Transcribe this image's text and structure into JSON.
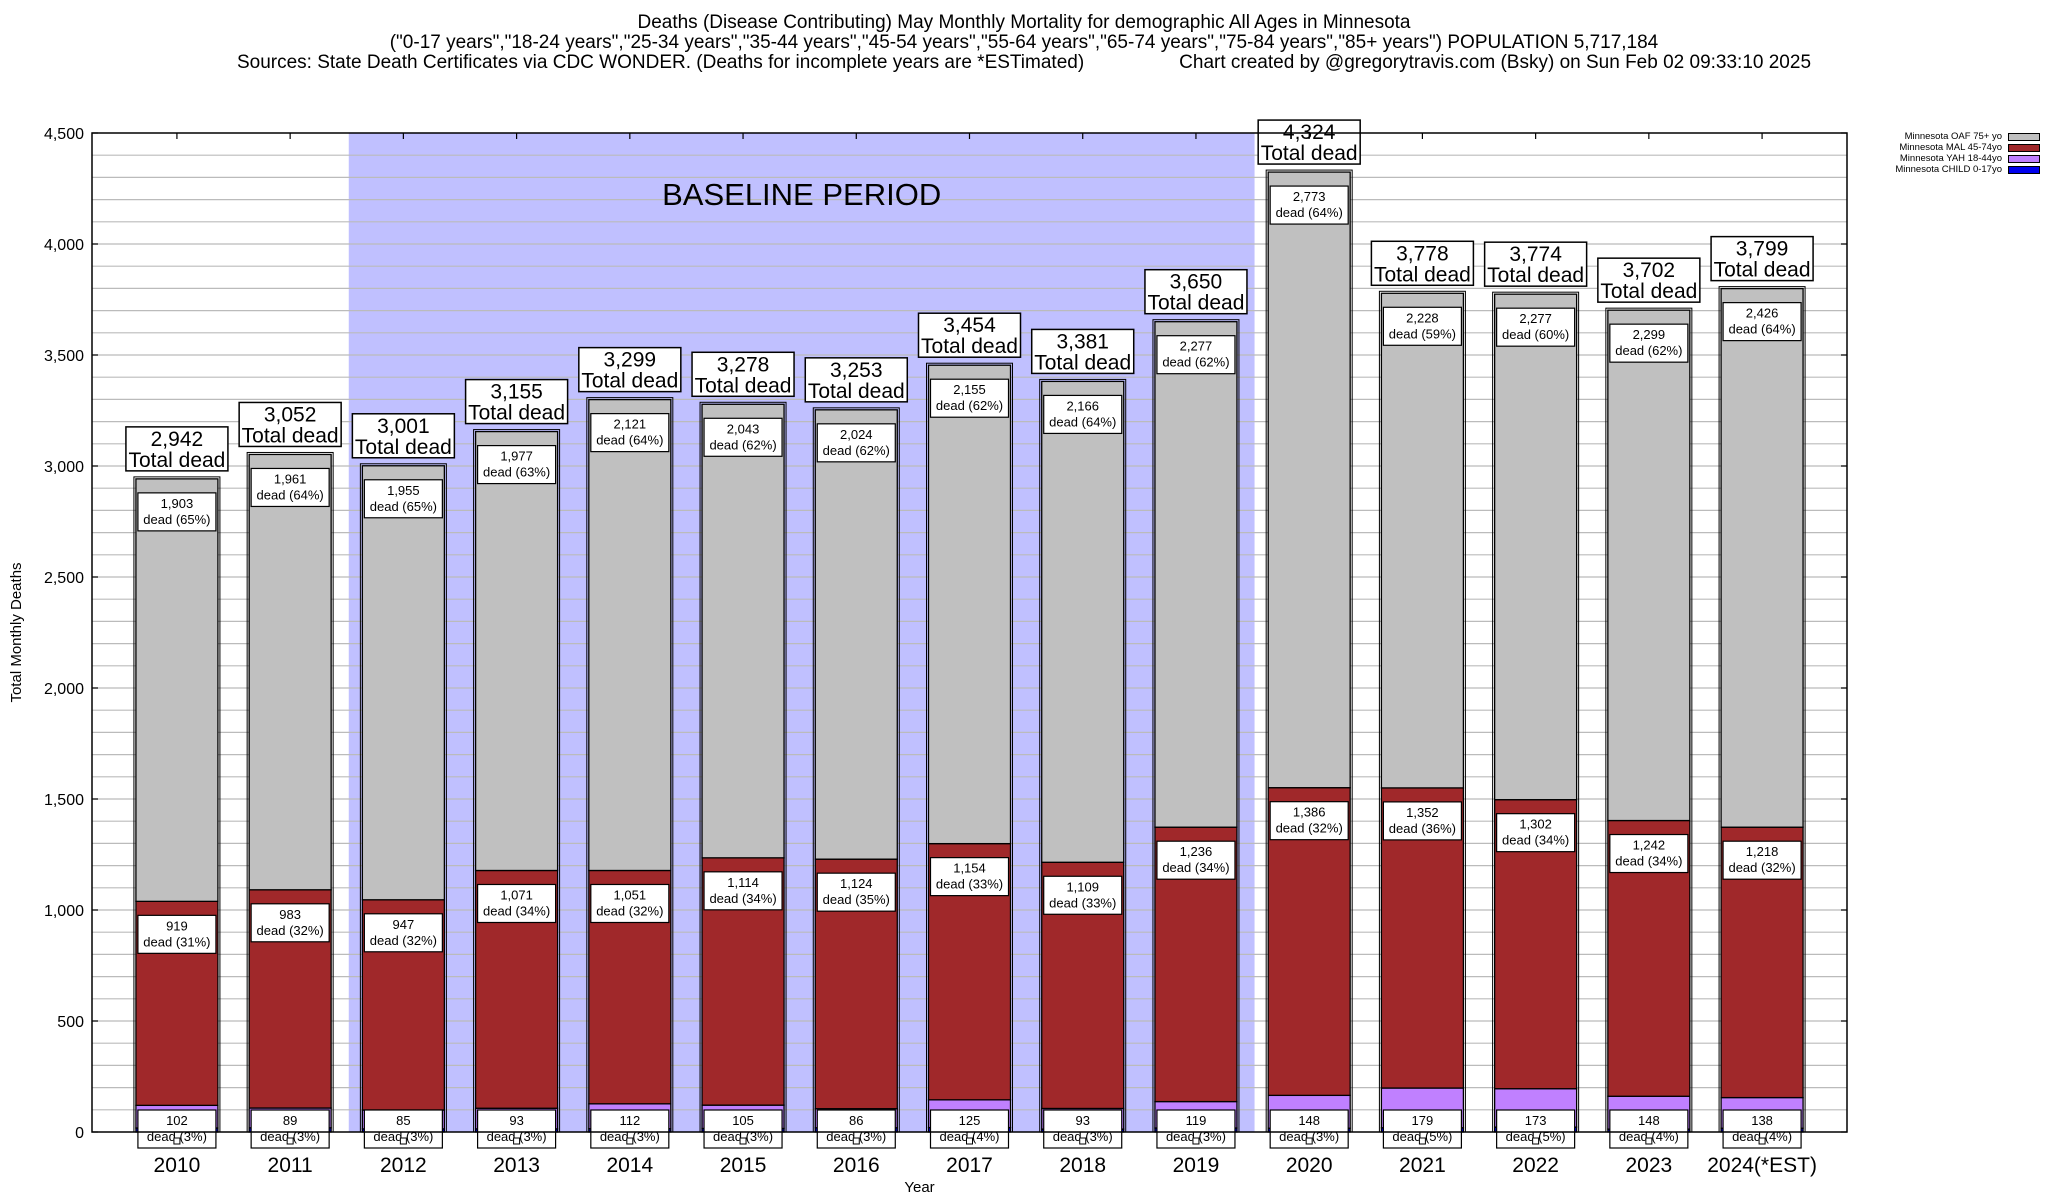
{
  "header": {
    "title": "Deaths (Disease Contributing) May Monthly Mortality for demographic All Ages in Minnesota",
    "subtitle": "(\"0-17 years\",\"18-24 years\",\"25-34 years\",\"35-44 years\",\"45-54 years\",\"55-64 years\",\"65-74 years\",\"75-84 years\",\"85+ years\") POPULATION 5,717,184",
    "sources_left": "Sources: State Death Certificates via CDC WONDER. (Deaths for incomplete years are *ESTimated)",
    "sources_right": "Chart created by @gregorytravis.com (Bsky) on Sun Feb 02 09:33:10 2025"
  },
  "chart_data": {
    "type": "bar",
    "stacked": true,
    "title": "Deaths (Disease Contributing) May Monthly Mortality for demographic All Ages in Minnesota",
    "xlabel": "Year",
    "ylabel": "Total Monthly Deaths",
    "ylim": [
      0,
      4500
    ],
    "yticks": [
      0,
      500,
      1000,
      1500,
      2000,
      2500,
      3000,
      3500,
      4000,
      4500
    ],
    "ytick_labels": [
      "0",
      "500",
      "1,000",
      "1,500",
      "2,000",
      "2,500",
      "3,000",
      "3,500",
      "4,000",
      "4,500"
    ],
    "minor_grid_step": 100,
    "grid": true,
    "legend_position": "top-right",
    "categories": [
      "2010",
      "2011",
      "2012",
      "2013",
      "2014",
      "2015",
      "2016",
      "2017",
      "2018",
      "2019",
      "2020",
      "2021",
      "2022",
      "2023",
      "2024(*EST)"
    ],
    "series": [
      {
        "name": "Minnesota CHILD 0-17yo",
        "color": "#0000ee",
        "values": [
          18,
          19,
          14,
          14,
          15,
          16,
          19,
          20,
          13,
          18,
          17,
          19,
          22,
          13,
          17
        ]
      },
      {
        "name": "Minnesota YAH 18-44yo",
        "color": "#c080ff",
        "values": [
          102,
          89,
          85,
          93,
          112,
          105,
          86,
          125,
          93,
          119,
          148,
          179,
          173,
          148,
          138
        ],
        "pct": [
          "3%",
          "3%",
          "3%",
          "3%",
          "3%",
          "3%",
          "3%",
          "4%",
          "3%",
          "3%",
          "3%",
          "5%",
          "5%",
          "4%",
          "4%"
        ]
      },
      {
        "name": "Minnesota MAL 45-74yo",
        "color": "#a0282a",
        "values": [
          919,
          983,
          947,
          1071,
          1051,
          1114,
          1124,
          1154,
          1109,
          1236,
          1386,
          1352,
          1302,
          1242,
          1218
        ],
        "pct": [
          "31%",
          "32%",
          "32%",
          "34%",
          "32%",
          "34%",
          "35%",
          "33%",
          "33%",
          "34%",
          "32%",
          "36%",
          "34%",
          "34%",
          "32%"
        ]
      },
      {
        "name": "Minnesota OAF 75+ yo",
        "color": "#c0c0c0",
        "values": [
          1903,
          1961,
          1955,
          1977,
          2121,
          2043,
          2024,
          2155,
          2166,
          2277,
          2773,
          2228,
          2277,
          2299,
          2426
        ],
        "pct": [
          "65%",
          "64%",
          "65%",
          "63%",
          "64%",
          "62%",
          "62%",
          "62%",
          "64%",
          "62%",
          "64%",
          "59%",
          "60%",
          "62%",
          "64%"
        ]
      }
    ],
    "totals": [
      2942,
      3052,
      3001,
      3155,
      3299,
      3278,
      3253,
      3454,
      3381,
      3650,
      4324,
      3778,
      3774,
      3702,
      3799
    ],
    "total_label_suffix": "Total dead",
    "segment_label_prefix": "dead",
    "annotation": {
      "text": "BASELINE PERIOD",
      "from_category": "2012",
      "to_category": "2019",
      "color": "#c0c0ff"
    },
    "legend_order": [
      "Minnesota OAF 75+ yo",
      "Minnesota MAL 45-74yo",
      "Minnesota YAH 18-44yo",
      "Minnesota CHILD 0-17yo"
    ]
  }
}
